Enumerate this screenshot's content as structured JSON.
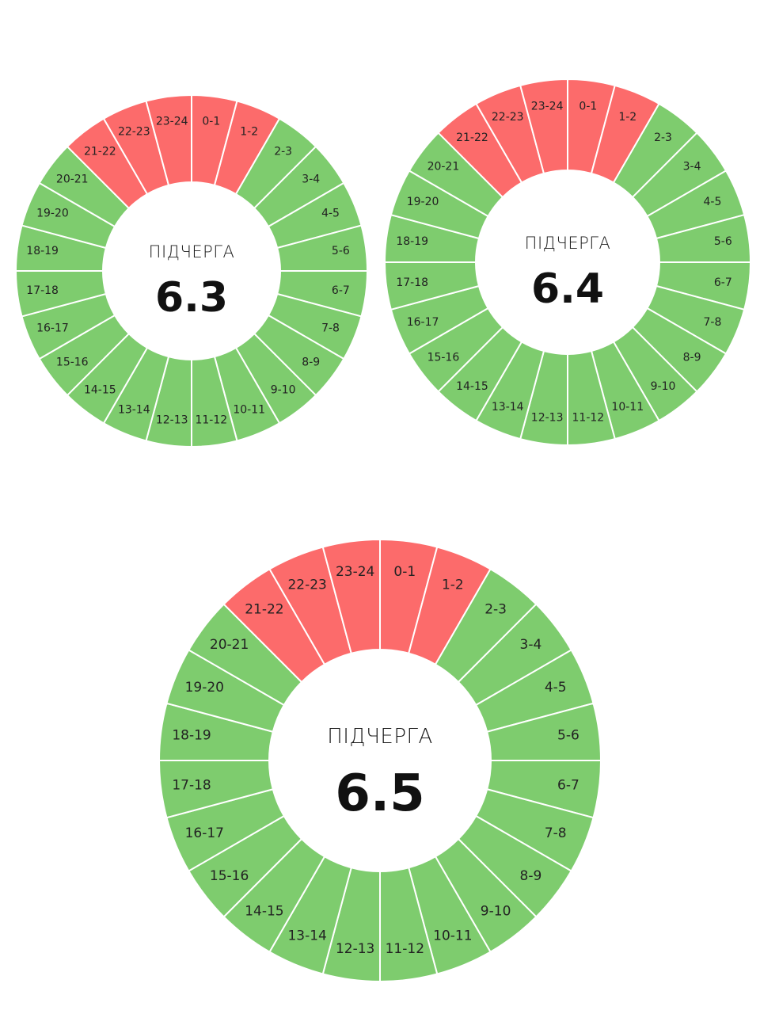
{
  "colors": {
    "on": "#7ecc6e",
    "off": "#fc6b6b",
    "divider": "#ffffff",
    "center": "#ffffff"
  },
  "wheels": [
    {
      "title": "ПІДЧЕРГА",
      "number": "6.3",
      "segments": [
        {
          "label": "0-1",
          "state": "off"
        },
        {
          "label": "1-2",
          "state": "off"
        },
        {
          "label": "2-3",
          "state": "on"
        },
        {
          "label": "3-4",
          "state": "on"
        },
        {
          "label": "4-5",
          "state": "on"
        },
        {
          "label": "5-6",
          "state": "on"
        },
        {
          "label": "6-7",
          "state": "on"
        },
        {
          "label": "7-8",
          "state": "on"
        },
        {
          "label": "8-9",
          "state": "on"
        },
        {
          "label": "9-10",
          "state": "on"
        },
        {
          "label": "10-11",
          "state": "on"
        },
        {
          "label": "11-12",
          "state": "on"
        },
        {
          "label": "12-13",
          "state": "on"
        },
        {
          "label": "13-14",
          "state": "on"
        },
        {
          "label": "14-15",
          "state": "on"
        },
        {
          "label": "15-16",
          "state": "on"
        },
        {
          "label": "16-17",
          "state": "on"
        },
        {
          "label": "17-18",
          "state": "on"
        },
        {
          "label": "18-19",
          "state": "on"
        },
        {
          "label": "19-20",
          "state": "on"
        },
        {
          "label": "20-21",
          "state": "on"
        },
        {
          "label": "21-22",
          "state": "off"
        },
        {
          "label": "22-23",
          "state": "off"
        },
        {
          "label": "23-24",
          "state": "off"
        }
      ]
    },
    {
      "title": "ПІДЧЕРГА",
      "number": "6.4",
      "segments": [
        {
          "label": "0-1",
          "state": "off"
        },
        {
          "label": "1-2",
          "state": "off"
        },
        {
          "label": "2-3",
          "state": "on"
        },
        {
          "label": "3-4",
          "state": "on"
        },
        {
          "label": "4-5",
          "state": "on"
        },
        {
          "label": "5-6",
          "state": "on"
        },
        {
          "label": "6-7",
          "state": "on"
        },
        {
          "label": "7-8",
          "state": "on"
        },
        {
          "label": "8-9",
          "state": "on"
        },
        {
          "label": "9-10",
          "state": "on"
        },
        {
          "label": "10-11",
          "state": "on"
        },
        {
          "label": "11-12",
          "state": "on"
        },
        {
          "label": "12-13",
          "state": "on"
        },
        {
          "label": "13-14",
          "state": "on"
        },
        {
          "label": "14-15",
          "state": "on"
        },
        {
          "label": "15-16",
          "state": "on"
        },
        {
          "label": "16-17",
          "state": "on"
        },
        {
          "label": "17-18",
          "state": "on"
        },
        {
          "label": "18-19",
          "state": "on"
        },
        {
          "label": "19-20",
          "state": "on"
        },
        {
          "label": "20-21",
          "state": "on"
        },
        {
          "label": "21-22",
          "state": "off"
        },
        {
          "label": "22-23",
          "state": "off"
        },
        {
          "label": "23-24",
          "state": "off"
        }
      ]
    },
    {
      "title": "ПІДЧЕРГА",
      "number": "6.5",
      "segments": [
        {
          "label": "0-1",
          "state": "off"
        },
        {
          "label": "1-2",
          "state": "off"
        },
        {
          "label": "2-3",
          "state": "on"
        },
        {
          "label": "3-4",
          "state": "on"
        },
        {
          "label": "4-5",
          "state": "on"
        },
        {
          "label": "5-6",
          "state": "on"
        },
        {
          "label": "6-7",
          "state": "on"
        },
        {
          "label": "7-8",
          "state": "on"
        },
        {
          "label": "8-9",
          "state": "on"
        },
        {
          "label": "9-10",
          "state": "on"
        },
        {
          "label": "10-11",
          "state": "on"
        },
        {
          "label": "11-12",
          "state": "on"
        },
        {
          "label": "12-13",
          "state": "on"
        },
        {
          "label": "13-14",
          "state": "on"
        },
        {
          "label": "14-15",
          "state": "on"
        },
        {
          "label": "15-16",
          "state": "on"
        },
        {
          "label": "16-17",
          "state": "on"
        },
        {
          "label": "17-18",
          "state": "on"
        },
        {
          "label": "18-19",
          "state": "on"
        },
        {
          "label": "19-20",
          "state": "on"
        },
        {
          "label": "20-21",
          "state": "on"
        },
        {
          "label": "21-22",
          "state": "off"
        },
        {
          "label": "22-23",
          "state": "off"
        },
        {
          "label": "23-24",
          "state": "off"
        }
      ]
    }
  ]
}
